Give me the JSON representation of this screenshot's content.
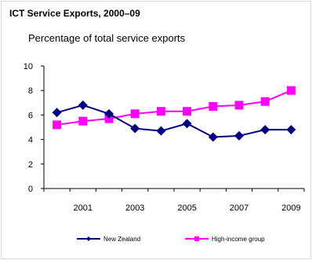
{
  "chart_data": {
    "type": "line",
    "title": "ICT Service Exports, 2000–09",
    "subtitle": "Percentage of total service exports",
    "xlabel": "",
    "ylabel": "",
    "x": [
      2000,
      2001,
      2002,
      2003,
      2004,
      2005,
      2006,
      2007,
      2008,
      2009
    ],
    "x_tick_labels": [
      "2001",
      "2003",
      "2005",
      "2007",
      "2009"
    ],
    "y_ticks": [
      0,
      2,
      4,
      6,
      8,
      10
    ],
    "ylim": [
      0,
      10
    ],
    "grid": false,
    "legend_position": "bottom",
    "series": [
      {
        "name": "New Zealand",
        "color": "#000080",
        "marker": "diamond",
        "values": [
          6.2,
          6.8,
          6.1,
          4.9,
          4.7,
          5.3,
          4.2,
          4.3,
          4.8,
          4.8
        ]
      },
      {
        "name": "High-income group",
        "color": "#ff00ff",
        "marker": "square",
        "values": [
          5.2,
          5.5,
          5.7,
          6.1,
          6.3,
          6.3,
          6.7,
          6.8,
          7.1,
          8.0
        ]
      }
    ]
  }
}
